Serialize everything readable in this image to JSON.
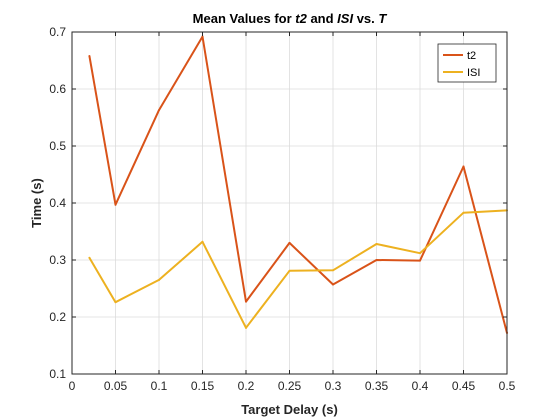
{
  "chart_data": {
    "type": "line",
    "title": {
      "prefix": "Mean Values for ",
      "var1": "t2",
      "mid": " and ",
      "var2": "ISI",
      "suffix": " vs. ",
      "var3": "T"
    },
    "xlabel": "Target Delay (s)",
    "ylabel": "Time (s)",
    "xlim": [
      0,
      0.5
    ],
    "ylim": [
      0.1,
      0.7
    ],
    "xticks": [
      0,
      0.05,
      0.1,
      0.15,
      0.2,
      0.25,
      0.3,
      0.35,
      0.4,
      0.45,
      0.5
    ],
    "xtick_labels": [
      "0",
      "0.05",
      "0.1",
      "0.15",
      "0.2",
      "0.25",
      "0.3",
      "0.35",
      "0.4",
      "0.45",
      "0.5"
    ],
    "yticks": [
      0.1,
      0.2,
      0.3,
      0.4,
      0.5,
      0.6,
      0.7
    ],
    "ytick_labels": [
      "0.1",
      "0.2",
      "0.3",
      "0.4",
      "0.5",
      "0.6",
      "0.7"
    ],
    "grid": true,
    "legend_position": "top-right",
    "x": [
      0.02,
      0.05,
      0.1,
      0.15,
      0.2,
      0.25,
      0.3,
      0.35,
      0.4,
      0.45,
      0.5
    ],
    "series": [
      {
        "name": "t2",
        "color": "#D95319",
        "values": [
          0.658,
          0.397,
          0.563,
          0.692,
          0.227,
          0.33,
          0.257,
          0.3,
          0.299,
          0.464,
          0.172
        ]
      },
      {
        "name": "ISI",
        "color": "#EDB120",
        "values": [
          0.304,
          0.226,
          0.265,
          0.332,
          0.181,
          0.281,
          0.282,
          0.328,
          0.312,
          0.383,
          0.387
        ]
      }
    ]
  }
}
